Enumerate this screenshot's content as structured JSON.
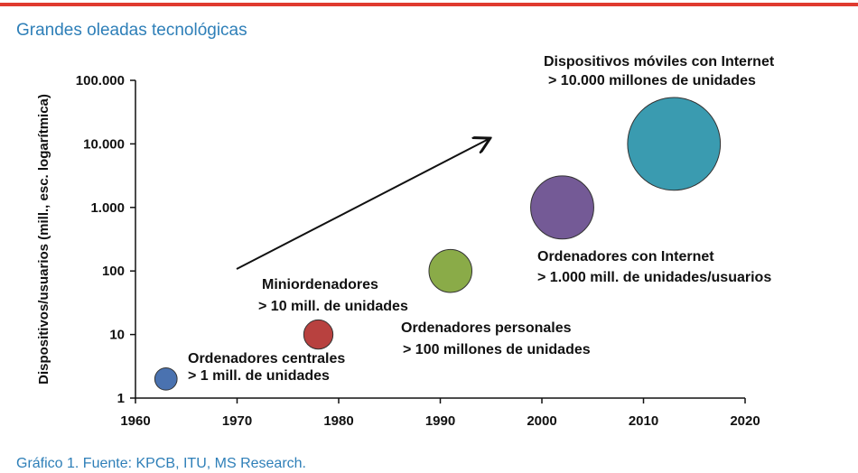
{
  "title": "Grandes oleadas tecnológicas",
  "caption": "Gráfico 1. Fuente: KPCB, ITU, MS Research.",
  "chart_data": {
    "type": "bubble",
    "ylabel": "Dispositivos/usuarios (mill., esc. logarítmica)",
    "log_y": true,
    "x": [
      1963,
      1978,
      1991,
      2002,
      2013
    ],
    "values": [
      2,
      10,
      100,
      1000,
      10000
    ],
    "colors": [
      "#4a72b0",
      "#b8413f",
      "#8aab48",
      "#745a96",
      "#3a9bb0"
    ],
    "xlim": [
      1960,
      2020
    ],
    "xticks": [
      1960,
      1970,
      1980,
      1990,
      2000,
      2010,
      2020
    ],
    "ylim": [
      1,
      100000
    ],
    "yticks": [
      1,
      10,
      100,
      {
        "value": 1000,
        "label": "1.000"
      },
      {
        "value": 10000,
        "label": "10.000"
      },
      {
        "value": 100000,
        "label": "100.000"
      }
    ],
    "annotations": [
      {
        "lines": [
          "Ordenadores centrales",
          "> 1 mill. de unidades"
        ]
      },
      {
        "lines": [
          "Miniordenadores",
          "> 10 mill. de unidades"
        ]
      },
      {
        "lines": [
          "Ordenadores personales",
          "> 100 millones de unidades"
        ]
      },
      {
        "lines": [
          "Ordenadores con Internet",
          "> 1.000 mill. de unidades/usuarios"
        ]
      },
      {
        "lines": [
          "Dispositivos móviles con Internet",
          "> 10.000 millones de unidades"
        ]
      }
    ]
  }
}
